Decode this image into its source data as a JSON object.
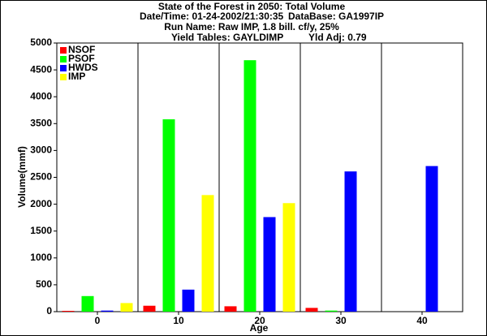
{
  "chart_data": {
    "type": "bar",
    "title": "State of the Forest in 2050: Total Volume",
    "info": [
      "Date/Time: 01-24-2002/21:30:35",
      "DataBase: GA1997IP",
      "Run Name: Raw IMP, 1.8 bill. cf/y, 25%",
      "Yield Tables: GAYLDIMP",
      "Yld Adj: 0.79"
    ],
    "x_label": "Age",
    "y_label": "Volume(mmf)",
    "categories": [
      "0",
      "10",
      "20",
      "30",
      "40"
    ],
    "series": [
      {
        "name": "NSOF",
        "color": "#ff0000",
        "values": [
          15,
          110,
          100,
          70,
          0
        ]
      },
      {
        "name": "PSOF",
        "color": "#00ff00",
        "values": [
          290,
          3580,
          4680,
          20,
          0
        ]
      },
      {
        "name": "HWDS",
        "color": "#0000ff",
        "values": [
          20,
          410,
          1760,
          2610,
          2710
        ]
      },
      {
        "name": "IMP",
        "color": "#ffff00",
        "values": [
          160,
          2170,
          2020,
          0,
          0
        ]
      }
    ],
    "ylim": [
      0,
      5000
    ],
    "yticks": [
      0,
      500,
      1000,
      1500,
      2000,
      2500,
      3000,
      3500,
      4000,
      4500,
      5000
    ],
    "legend": "top-left"
  }
}
